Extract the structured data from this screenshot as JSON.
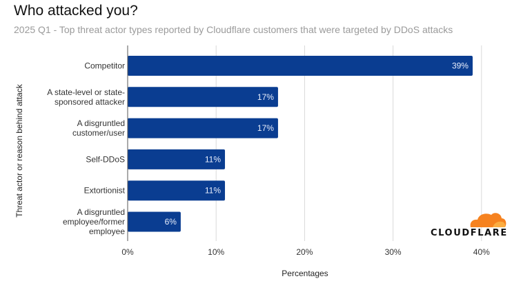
{
  "header": {
    "title": "Who attacked you?",
    "subtitle": "2025 Q1 - Top threat actor types reported by Cloudflare customers that were targeted by DDoS attacks"
  },
  "brand": {
    "logo_text": "CLOUDFLARE",
    "icon": "cloud-icon",
    "logo_color": "#f6821f"
  },
  "colors": {
    "bar": "#0a3d91",
    "grid": "#d9d9d9",
    "axis": "#555555"
  },
  "chart_data": {
    "type": "bar",
    "orientation": "horizontal",
    "title": "Who attacked you?",
    "subtitle": "2025 Q1 - Top threat actor types reported by Cloudflare customers that were targeted by DDoS attacks",
    "xlabel": "Percentages",
    "ylabel": "Threat actor or reason behind attack",
    "categories": [
      [
        "Competitor"
      ],
      [
        "A state-level or state-",
        "sponsored attacker"
      ],
      [
        "A disgruntled",
        "customer/user"
      ],
      [
        "Self-DDoS"
      ],
      [
        "Extortionist"
      ],
      [
        "A disgruntled",
        "employee/former",
        "employee"
      ]
    ],
    "values": [
      39,
      17,
      17,
      11,
      11,
      6
    ],
    "data_labels": [
      "39%",
      "17%",
      "17%",
      "11%",
      "11%",
      "6%"
    ],
    "xlim": [
      0,
      40
    ],
    "xticks": [
      0,
      10,
      20,
      30,
      40
    ],
    "xtick_labels": [
      "0%",
      "10%",
      "20%",
      "30%",
      "40%"
    ],
    "grid": true,
    "legend": "none"
  }
}
